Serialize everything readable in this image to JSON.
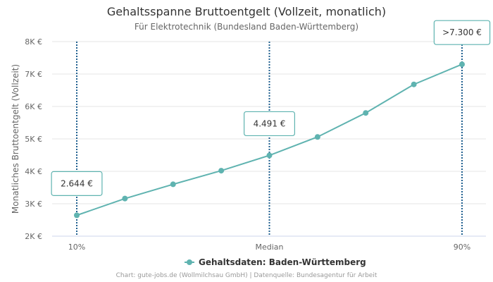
{
  "chart_data": {
    "type": "line",
    "title": "Gehaltsspanne Bruttoentgelt (Vollzeit, monatlich)",
    "subtitle": "Für Elektrotechnik (Bundesland Baden-Württemberg)",
    "ylabel": "Monatliches Bruttoentgelt (Vollzeit)",
    "xlabel": "",
    "ylim": [
      2000,
      8000
    ],
    "y_ticks": [
      {
        "value": 2000,
        "label": "2K €"
      },
      {
        "value": 3000,
        "label": "3K €"
      },
      {
        "value": 4000,
        "label": "4K €"
      },
      {
        "value": 5000,
        "label": "5K €"
      },
      {
        "value": 6000,
        "label": "6K €"
      },
      {
        "value": 7000,
        "label": "7K €"
      },
      {
        "value": 8000,
        "label": "8K €"
      }
    ],
    "x_ticks": [
      {
        "x": 10,
        "label": "10%"
      },
      {
        "x": 50,
        "label": "Median"
      },
      {
        "x": 90,
        "label": "90%"
      }
    ],
    "series": [
      {
        "name": "Gehaltsdaten: Baden-Württemberg",
        "color": "#5fb3b0",
        "x": [
          10,
          20,
          30,
          40,
          50,
          60,
          70,
          80,
          90
        ],
        "values": [
          2644,
          3160,
          3600,
          4020,
          4491,
          5060,
          5800,
          6680,
          7300
        ]
      }
    ],
    "markers": [
      {
        "x": 10,
        "value": 2644,
        "label": "2.644 €"
      },
      {
        "x": 50,
        "value": 4491,
        "label": "4.491 €"
      },
      {
        "x": 90,
        "value": 7300,
        "label": ">7.300 €"
      }
    ],
    "legend": "bottom-center",
    "grid": true
  },
  "credits": "Chart: gute-jobs.de (Wollmilchsau GmbH) | Datenquelle: Bundesagentur für Arbeit"
}
